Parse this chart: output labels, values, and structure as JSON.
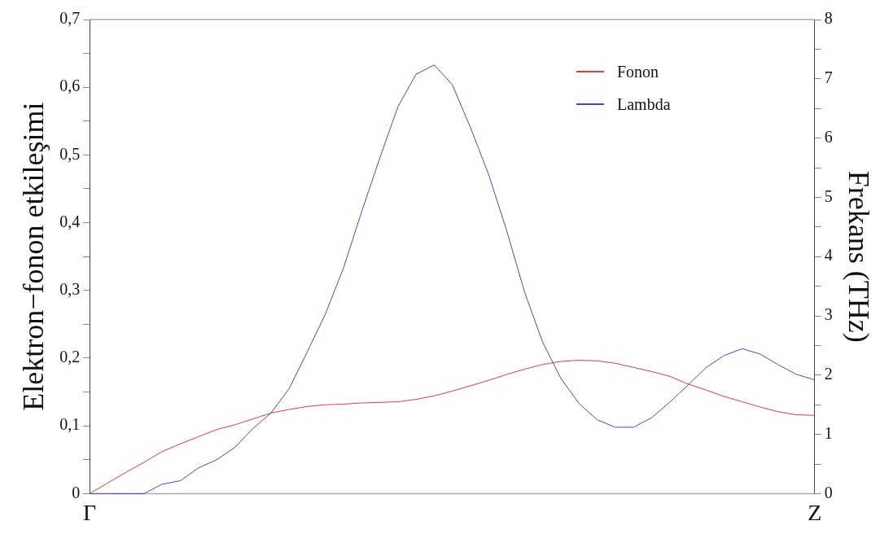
{
  "chart_data": {
    "type": "line",
    "ylabel": "Elektron−fonon etkileşimi",
    "y2label": "Frekans (THz)",
    "categories": [
      "Γ",
      null,
      null,
      null,
      null,
      null,
      null,
      null,
      null,
      null,
      null,
      null,
      null,
      null,
      null,
      null,
      null,
      null,
      null,
      null,
      null,
      null,
      null,
      null,
      null,
      null,
      null,
      null,
      null,
      null,
      null,
      null,
      null,
      null,
      null,
      null,
      null,
      null,
      null,
      null,
      "Z"
    ],
    "ylim": [
      0,
      0.7
    ],
    "yticks": [
      {
        "value": 0,
        "label": "0"
      },
      {
        "value": 0.05,
        "label": null
      },
      {
        "value": 0.1,
        "label": "0,1"
      },
      {
        "value": 0.15,
        "label": null
      },
      {
        "value": 0.2,
        "label": "0,2"
      },
      {
        "value": 0.25,
        "label": null
      },
      {
        "value": 0.3,
        "label": "0,3"
      },
      {
        "value": 0.35,
        "label": null
      },
      {
        "value": 0.4,
        "label": "0,4"
      },
      {
        "value": 0.45,
        "label": null
      },
      {
        "value": 0.5,
        "label": "0,5"
      },
      {
        "value": 0.55,
        "label": null
      },
      {
        "value": 0.6,
        "label": "0,6"
      },
      {
        "value": 0.65,
        "label": null
      },
      {
        "value": 0.7,
        "label": "0,7"
      }
    ],
    "y2lim": [
      0,
      8
    ],
    "y2ticks": [
      0,
      {
        "value": 0.5,
        "label": null
      },
      1,
      {
        "value": 1.5,
        "label": null
      },
      2,
      {
        "value": 2.5,
        "label": null
      },
      3,
      {
        "value": 3.5,
        "label": null
      },
      4,
      {
        "value": 4.5,
        "label": null
      },
      5,
      {
        "value": 5.5,
        "label": null
      },
      6,
      {
        "value": 6.5,
        "label": null
      },
      7,
      {
        "value": 7.5,
        "label": null
      },
      8
    ],
    "legend": "top right",
    "marker": "none",
    "line_style": "solid",
    "series": [
      {
        "name": "Fonon",
        "color": "#e03c3c",
        "axis": "y2",
        "values": [
          0,
          0.18,
          0.36,
          0.53,
          0.71,
          0.84,
          0.96,
          1.08,
          1.16,
          1.26,
          1.36,
          1.42,
          1.47,
          1.5,
          1.51,
          1.53,
          1.54,
          1.55,
          1.59,
          1.65,
          1.73,
          1.82,
          1.91,
          2.01,
          2.1,
          2.18,
          2.23,
          2.25,
          2.24,
          2.2,
          2.13,
          2.06,
          1.98,
          1.85,
          1.75,
          1.64,
          1.55,
          1.46,
          1.38,
          1.33,
          1.32
        ]
      },
      {
        "name": "Lambda",
        "color": "#4848c8",
        "values": [
          0,
          0,
          0,
          0,
          0.014,
          0.019,
          0.038,
          0.05,
          0.068,
          0.096,
          0.119,
          0.155,
          0.209,
          0.265,
          0.333,
          0.416,
          0.495,
          0.571,
          0.619,
          0.633,
          0.604,
          0.541,
          0.472,
          0.389,
          0.297,
          0.223,
          0.17,
          0.133,
          0.109,
          0.098,
          0.098,
          0.112,
          0.135,
          0.16,
          0.186,
          0.204,
          0.214,
          0.206,
          0.19,
          0.176,
          0.168
        ]
      }
    ]
  }
}
